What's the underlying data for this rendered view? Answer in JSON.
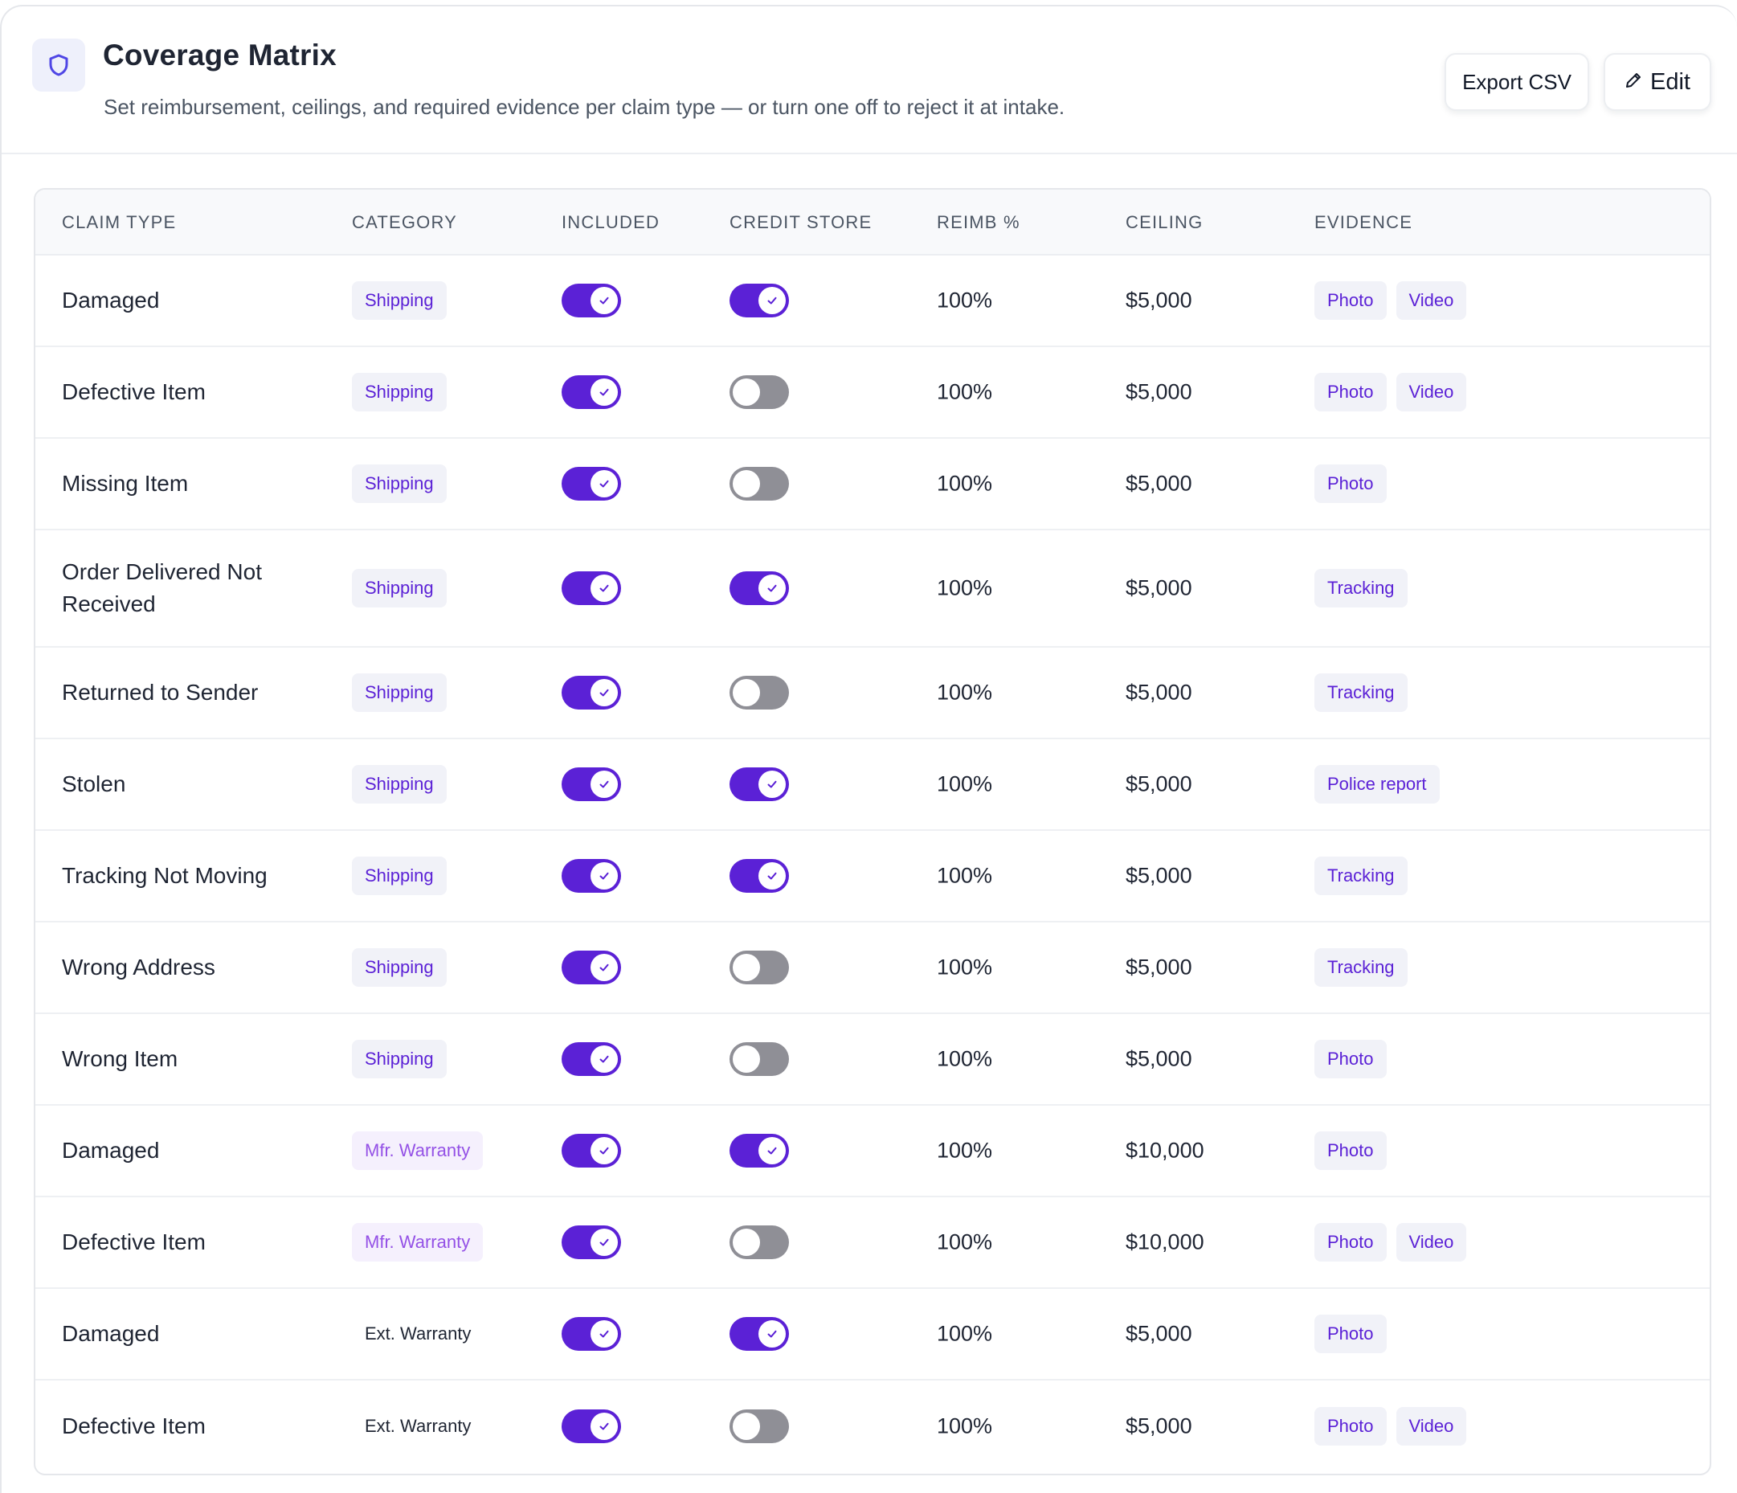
{
  "header": {
    "title": "Coverage Matrix",
    "subtitle": "Set reimbursement, ceilings, and required evidence per claim type — or turn one off to reject it at intake.",
    "icon": "shield-icon",
    "export_label": "Export CSV",
    "edit_label": "Edit"
  },
  "colors": {
    "accent": "#5b21d6",
    "toggle_off": "#8f8f96",
    "tag_bg": "#f1f2f8",
    "mfr_tag_text": "#9451e6"
  },
  "table": {
    "columns": [
      "CLAIM TYPE",
      "CATEGORY",
      "INCLUDED",
      "CREDIT STORE",
      "REIMB %",
      "CEILING",
      "EVIDENCE"
    ],
    "rows": [
      {
        "claim_type": "Damaged",
        "category": "Shipping",
        "category_style": "shipping",
        "included": true,
        "credit_store": true,
        "reimb": "100%",
        "ceiling": "$5,000",
        "evidence": [
          "Photo",
          "Video"
        ]
      },
      {
        "claim_type": "Defective Item",
        "category": "Shipping",
        "category_style": "shipping",
        "included": true,
        "credit_store": false,
        "reimb": "100%",
        "ceiling": "$5,000",
        "evidence": [
          "Photo",
          "Video"
        ]
      },
      {
        "claim_type": "Missing Item",
        "category": "Shipping",
        "category_style": "shipping",
        "included": true,
        "credit_store": false,
        "reimb": "100%",
        "ceiling": "$5,000",
        "evidence": [
          "Photo"
        ]
      },
      {
        "claim_type": "Order Delivered Not Received",
        "category": "Shipping",
        "category_style": "shipping",
        "included": true,
        "credit_store": true,
        "reimb": "100%",
        "ceiling": "$5,000",
        "evidence": [
          "Tracking"
        ]
      },
      {
        "claim_type": "Returned to Sender",
        "category": "Shipping",
        "category_style": "shipping",
        "included": true,
        "credit_store": false,
        "reimb": "100%",
        "ceiling": "$5,000",
        "evidence": [
          "Tracking"
        ]
      },
      {
        "claim_type": "Stolen",
        "category": "Shipping",
        "category_style": "shipping",
        "included": true,
        "credit_store": true,
        "reimb": "100%",
        "ceiling": "$5,000",
        "evidence": [
          "Police report"
        ]
      },
      {
        "claim_type": "Tracking Not Moving",
        "category": "Shipping",
        "category_style": "shipping",
        "included": true,
        "credit_store": true,
        "reimb": "100%",
        "ceiling": "$5,000",
        "evidence": [
          "Tracking"
        ]
      },
      {
        "claim_type": "Wrong Address",
        "category": "Shipping",
        "category_style": "shipping",
        "included": true,
        "credit_store": false,
        "reimb": "100%",
        "ceiling": "$5,000",
        "evidence": [
          "Tracking"
        ]
      },
      {
        "claim_type": "Wrong Item",
        "category": "Shipping",
        "category_style": "shipping",
        "included": true,
        "credit_store": false,
        "reimb": "100%",
        "ceiling": "$5,000",
        "evidence": [
          "Photo"
        ]
      },
      {
        "claim_type": "Damaged",
        "category": "Mfr. Warranty",
        "category_style": "mfr",
        "included": true,
        "credit_store": true,
        "reimb": "100%",
        "ceiling": "$10,000",
        "evidence": [
          "Photo"
        ]
      },
      {
        "claim_type": "Defective Item",
        "category": "Mfr. Warranty",
        "category_style": "mfr",
        "included": true,
        "credit_store": false,
        "reimb": "100%",
        "ceiling": "$10,000",
        "evidence": [
          "Photo",
          "Video"
        ]
      },
      {
        "claim_type": "Damaged",
        "category": "Ext. Warranty",
        "category_style": "ext",
        "included": true,
        "credit_store": true,
        "reimb": "100%",
        "ceiling": "$5,000",
        "evidence": [
          "Photo"
        ]
      },
      {
        "claim_type": "Defective Item",
        "category": "Ext. Warranty",
        "category_style": "ext",
        "included": true,
        "credit_store": false,
        "reimb": "100%",
        "ceiling": "$5,000",
        "evidence": [
          "Photo",
          "Video"
        ]
      }
    ]
  }
}
